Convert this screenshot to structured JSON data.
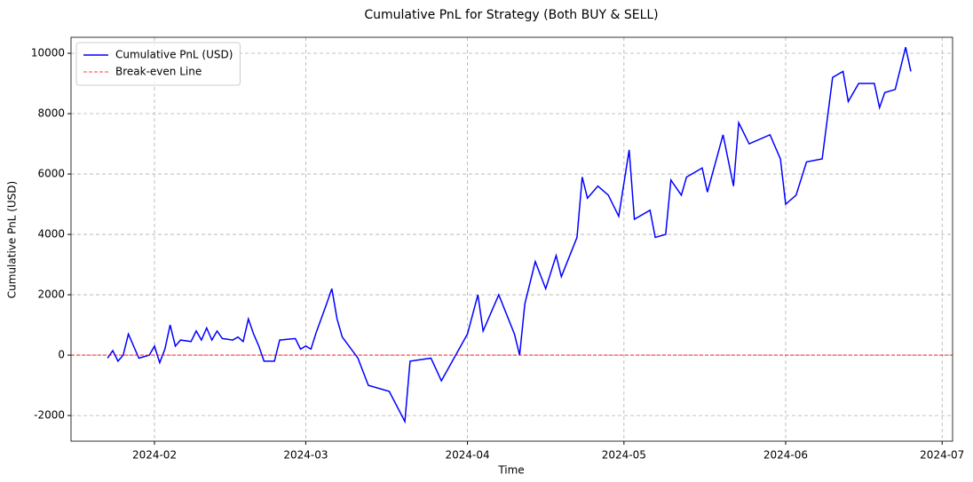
{
  "chart_data": {
    "type": "line",
    "title": "Cumulative PnL for Strategy (Both BUY & SELL)",
    "x_label": "Time",
    "y_label": "Cumulative PnL (USD)",
    "x": [
      "2024-01-23",
      "2024-01-24",
      "2024-01-25",
      "2024-01-26",
      "2024-01-27",
      "2024-01-28",
      "2024-01-29",
      "2024-01-31",
      "2024-02-01",
      "2024-02-02",
      "2024-02-03",
      "2024-02-04",
      "2024-02-05",
      "2024-02-06",
      "2024-02-08",
      "2024-02-09",
      "2024-02-10",
      "2024-02-11",
      "2024-02-12",
      "2024-02-13",
      "2024-02-14",
      "2024-02-16",
      "2024-02-17",
      "2024-02-18",
      "2024-02-19",
      "2024-02-20",
      "2024-02-21",
      "2024-02-22",
      "2024-02-24",
      "2024-02-25",
      "2024-02-28",
      "2024-02-29",
      "2024-03-01",
      "2024-03-02",
      "2024-03-03",
      "2024-03-05",
      "2024-03-06",
      "2024-03-07",
      "2024-03-08",
      "2024-03-11",
      "2024-03-13",
      "2024-03-17",
      "2024-03-20",
      "2024-03-21",
      "2024-03-25",
      "2024-03-27",
      "2024-04-01",
      "2024-04-03",
      "2024-04-04",
      "2024-04-07",
      "2024-04-10",
      "2024-04-11",
      "2024-04-12",
      "2024-04-14",
      "2024-04-16",
      "2024-04-18",
      "2024-04-19",
      "2024-04-22",
      "2024-04-23",
      "2024-04-24",
      "2024-04-26",
      "2024-04-28",
      "2024-04-30",
      "2024-05-02",
      "2024-05-03",
      "2024-05-06",
      "2024-05-07",
      "2024-05-09",
      "2024-05-10",
      "2024-05-12",
      "2024-05-13",
      "2024-05-16",
      "2024-05-17",
      "2024-05-20",
      "2024-05-22",
      "2024-05-23",
      "2024-05-25",
      "2024-05-29",
      "2024-05-31",
      "2024-06-01",
      "2024-06-03",
      "2024-06-05",
      "2024-06-08",
      "2024-06-10",
      "2024-06-12",
      "2024-06-13",
      "2024-06-15",
      "2024-06-18",
      "2024-06-19",
      "2024-06-20",
      "2024-06-22",
      "2024-06-24",
      "2024-06-25"
    ],
    "series": [
      {
        "name": "Cumulative PnL (USD)",
        "color": "#0000ff",
        "values": [
          -100,
          150,
          -200,
          0,
          700,
          300,
          -100,
          0,
          300,
          -250,
          200,
          1000,
          300,
          500,
          450,
          800,
          500,
          900,
          500,
          800,
          550,
          500,
          600,
          450,
          1200,
          700,
          300,
          -200,
          -200,
          500,
          550,
          200,
          300,
          200,
          750,
          1700,
          2200,
          1200,
          600,
          -100,
          -1000,
          -1200,
          -2200,
          -200,
          -100,
          -850,
          700,
          2000,
          800,
          2000,
          700,
          0,
          1700,
          3100,
          2200,
          3300,
          2600,
          3900,
          5900,
          5200,
          5600,
          5300,
          4600,
          6800,
          4500,
          4800,
          3900,
          4000,
          5800,
          5300,
          5900,
          6200,
          5400,
          7300,
          5600,
          7700,
          7000,
          7300,
          6500,
          5000,
          5300,
          6400,
          6500,
          9200,
          9400,
          8400,
          9000,
          9000,
          8200,
          8700,
          8800,
          10200,
          9400
        ]
      }
    ],
    "hline": {
      "name": "Break-even Line",
      "value": 0,
      "color": "#ff0000"
    },
    "xlim": [
      "2024-01-16",
      "2024-07-03"
    ],
    "xticks": [
      {
        "value": "2024-02-01",
        "label": "2024-02"
      },
      {
        "value": "2024-03-01",
        "label": "2024-03"
      },
      {
        "value": "2024-04-01",
        "label": "2024-04"
      },
      {
        "value": "2024-05-01",
        "label": "2024-05"
      },
      {
        "value": "2024-06-01",
        "label": "2024-06"
      },
      {
        "value": "2024-07-01",
        "label": "2024-07"
      }
    ],
    "ylim": [
      -2850,
      10530
    ],
    "yticks": [
      -2000,
      0,
      2000,
      4000,
      6000,
      8000,
      10000
    ],
    "grid": true,
    "legend": "upper left"
  }
}
